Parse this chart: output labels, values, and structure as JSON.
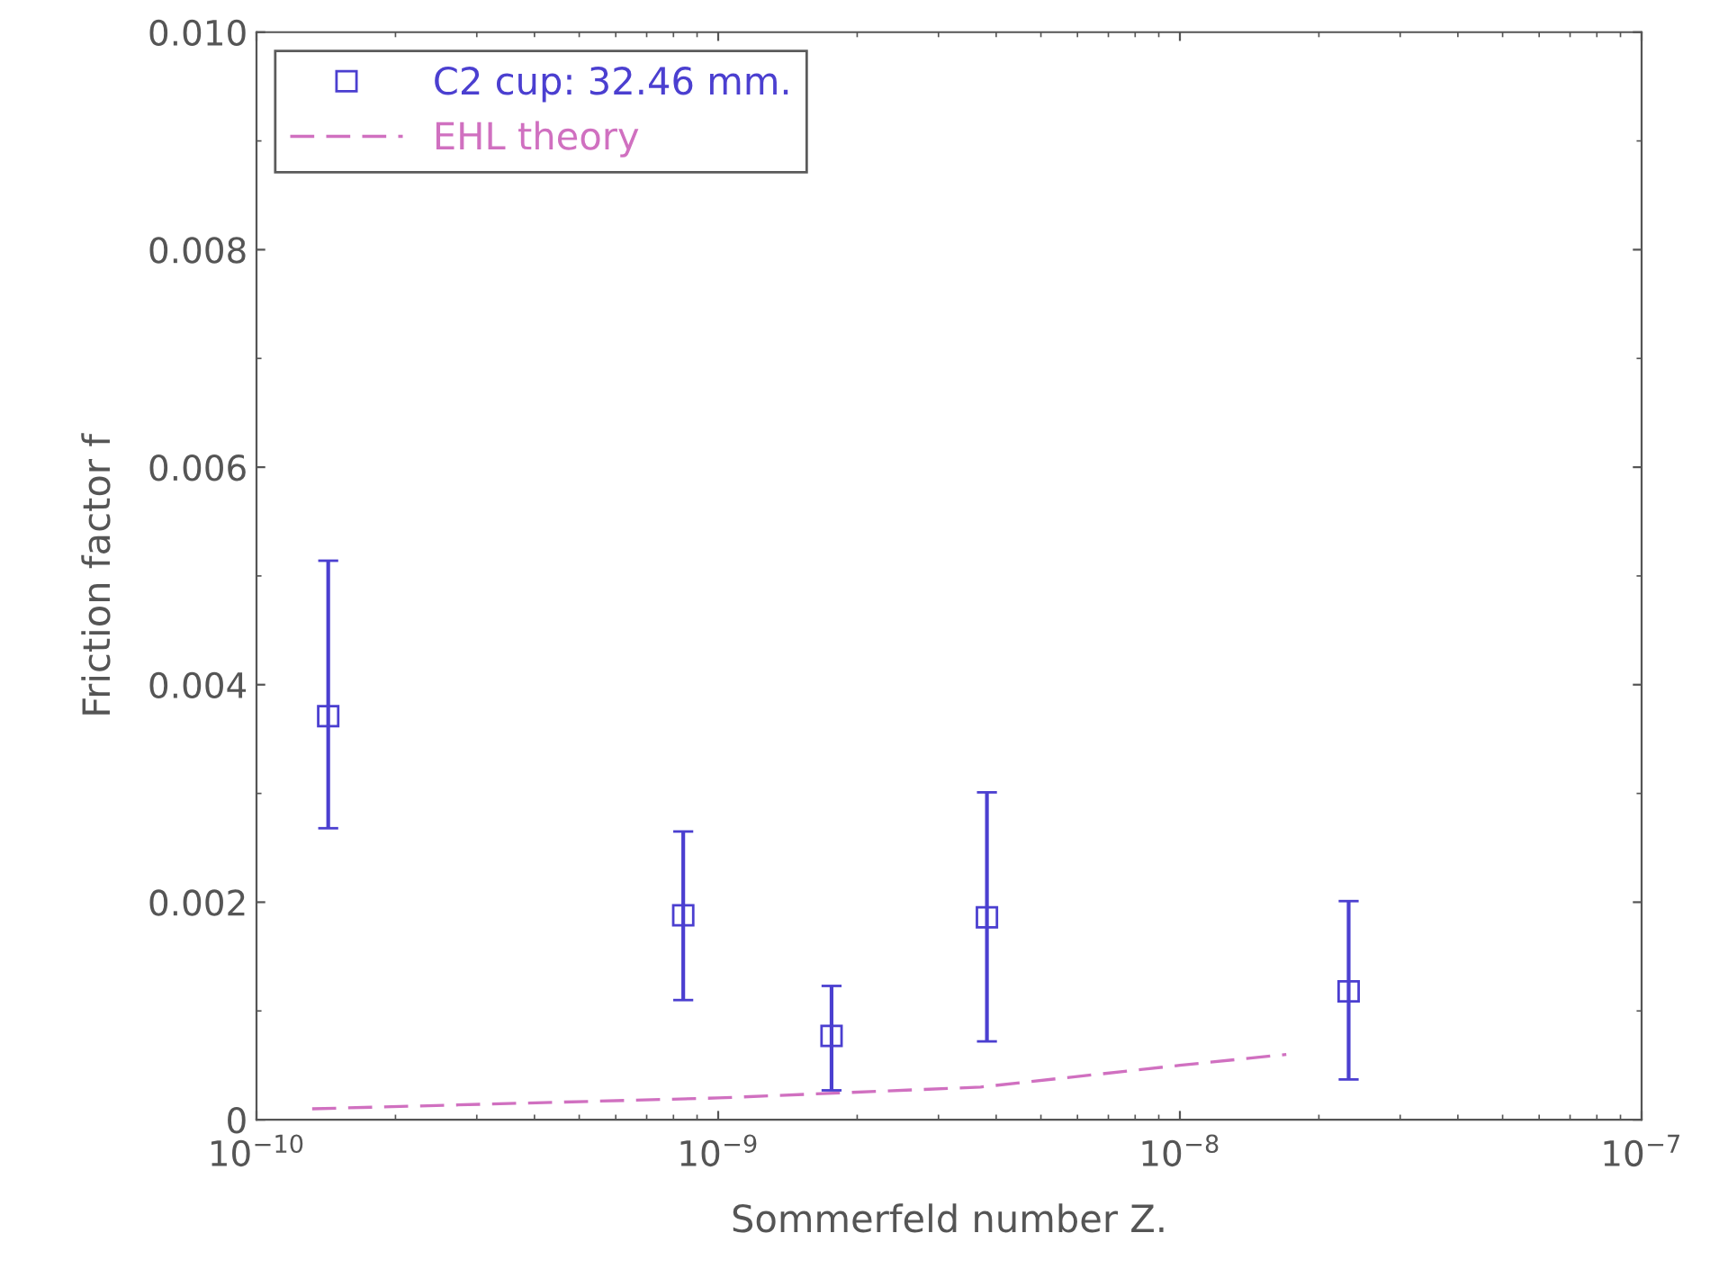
{
  "chart_data": {
    "type": "scatter",
    "xlabel": "Sommerfeld number Z.",
    "ylabel": "Friction factor f",
    "log": "x",
    "xlim": [
      1e-10,
      1e-07
    ],
    "xticks": [
      {
        "value": 1e-10,
        "label": "10$^{−10}$"
      },
      {
        "value": 1e-09,
        "label": "10$^{−9}$"
      },
      {
        "value": 1e-08,
        "label": "10$^{−8}$"
      },
      {
        "value": 1e-07,
        "label": "10$^{−7}$"
      }
    ],
    "ylim": [
      0,
      0.01
    ],
    "yticks": [
      {
        "value": 0,
        "label": "0"
      },
      {
        "value": 0.002,
        "label": "0.002"
      },
      {
        "value": 0.004,
        "label": "0.004"
      },
      {
        "value": 0.006,
        "label": "0.006"
      },
      {
        "value": 0.008,
        "label": "0.008"
      },
      {
        "value": 0.01,
        "label": "0.010"
      }
    ],
    "grid": false,
    "legend": "top left",
    "series": [
      {
        "name": "C2 cup: 32.46 mm.",
        "color": "#4b3fd0",
        "marker": "square",
        "x": [
          1.43e-10,
          8.4e-10,
          1.76e-09,
          3.82e-09,
          2.32e-08
        ],
        "values": [
          0.00371,
          0.00188,
          0.00077,
          0.00186,
          0.00118
        ],
        "errors": [
          [
            0.00268,
            0.00514
          ],
          [
            0.0011,
            0.00265
          ],
          [
            0.00027,
            0.00123
          ],
          [
            0.00072,
            0.00301
          ],
          [
            0.00037,
            0.00201
          ]
        ]
      },
      {
        "name": "EHL theory",
        "type": "line",
        "color": "#d070c0",
        "line_style": "dashed",
        "marker": "none",
        "x": [
          1.32e-10,
          1e-09,
          3.7e-09,
          1e-08,
          1.7e-08
        ],
        "values": [
          0.0001,
          0.0002,
          0.0003,
          0.0005,
          0.0006
        ]
      }
    ]
  }
}
